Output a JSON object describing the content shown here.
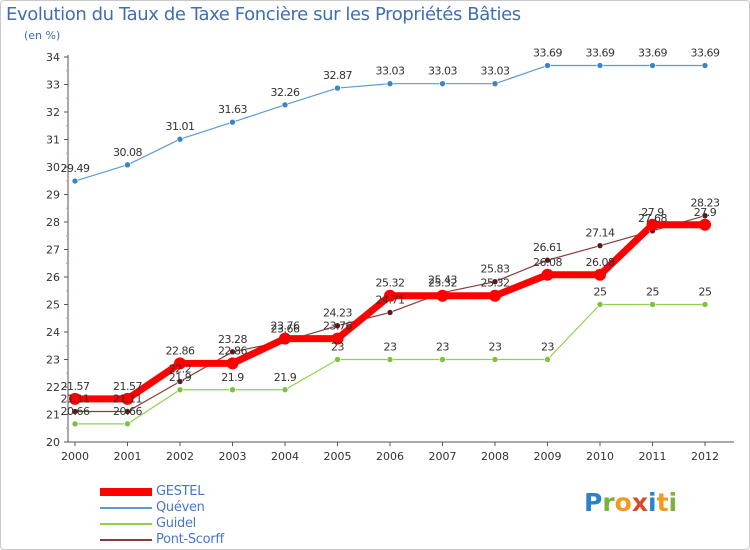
{
  "title": "Evolution du Taux de Taxe Foncière sur les Propriétés Bâties",
  "subtitle": "(en %)",
  "logo": {
    "letters": [
      "P",
      "r",
      "o",
      "x",
      "i",
      "t",
      "i"
    ],
    "colors": [
      "#2c82c9",
      "#7bb23c",
      "#f39a1f",
      "#d94a2b",
      "#2c82c9",
      "#f39a1f",
      "#7bb23c"
    ]
  },
  "chart_data": {
    "type": "line",
    "x": [
      "2000",
      "2001",
      "2002",
      "2003",
      "2004",
      "2005",
      "2006",
      "2007",
      "2008",
      "2009",
      "2010",
      "2011",
      "2012"
    ],
    "ylim": [
      20,
      34
    ],
    "yticks": [
      "20",
      "21",
      "22",
      "23",
      "24",
      "25",
      "26",
      "27",
      "28",
      "29",
      "30",
      "31",
      "32",
      "33",
      "34"
    ],
    "grid": false,
    "legend_position": "bottom-left",
    "series": [
      {
        "name": "GESTEL",
        "color": "#ff0000",
        "marker_color": "#ff0000",
        "values": [
          21.57,
          21.57,
          22.86,
          22.86,
          23.76,
          23.76,
          25.32,
          25.32,
          25.32,
          26.08,
          26.08,
          27.9,
          27.9
        ],
        "labels": [
          "21.57",
          "21.57",
          "22.86",
          "22.86",
          "23.76",
          "23.76",
          "25.32",
          "25.32",
          "25.32",
          "26.08",
          "26.08",
          "27.9",
          "27.9"
        ]
      },
      {
        "name": "Quéven",
        "color": "#5b9bd5",
        "marker_color": "#3a85c8",
        "values": [
          29.49,
          30.08,
          31.01,
          31.63,
          32.26,
          32.87,
          33.03,
          33.03,
          33.03,
          33.69,
          33.69,
          33.69,
          33.69
        ],
        "labels": [
          "29.49",
          "30.08",
          "31.01",
          "31.63",
          "32.26",
          "32.87",
          "33.03",
          "33.03",
          "33.03",
          "33.69",
          "33.69",
          "33.69",
          "33.69"
        ]
      },
      {
        "name": "Guidel",
        "color": "#8fd14f",
        "marker_color": "#7cc23c",
        "values": [
          20.66,
          20.66,
          21.9,
          21.9,
          21.9,
          23,
          23,
          23,
          23,
          23,
          25,
          25,
          25
        ],
        "labels": [
          "20.66",
          "20.66",
          "21.9",
          "21.9",
          "21.9",
          "23",
          "23",
          "23",
          "23",
          "23",
          "25",
          "25",
          "25"
        ]
      },
      {
        "name": "Pont-Scorff",
        "color": "#8b3a3a",
        "marker_color": "#5a1a1a",
        "values": [
          21.11,
          21.11,
          22.2,
          23.28,
          23.66,
          24.23,
          24.71,
          25.43,
          25.83,
          26.61,
          27.14,
          27.68,
          28.23
        ],
        "labels": [
          "21.11",
          "21.11",
          "22.2",
          "23.28",
          "23.66",
          "24.23",
          "24.71",
          "25.43",
          "25.83",
          "26.61",
          "27.14",
          "27.68",
          "28.23"
        ]
      }
    ]
  }
}
